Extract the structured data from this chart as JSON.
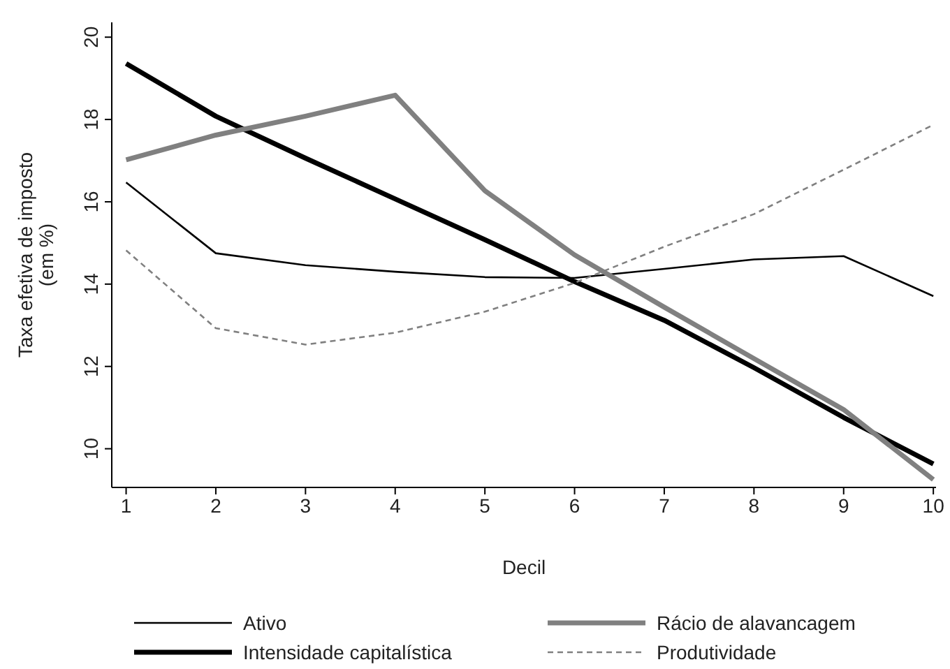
{
  "chart_data": {
    "type": "line",
    "xlabel": "Decil",
    "ylabel": "Taxa efetiva de imposto\n(em %)",
    "x": [
      1,
      2,
      3,
      4,
      5,
      6,
      7,
      8,
      9,
      10
    ],
    "xlim": [
      0.84,
      10.03
    ],
    "xticks": [
      1,
      2,
      3,
      4,
      5,
      6,
      7,
      8,
      9,
      10
    ],
    "ylim": [
      9.06,
      20.36
    ],
    "yticks": [
      10,
      12,
      14,
      16,
      18,
      20
    ],
    "grid": false,
    "legend": "bottom",
    "series": [
      {
        "name": "Ativo",
        "color": "#000000",
        "line_style": "solid",
        "values": [
          16.47,
          14.75,
          14.46,
          14.3,
          14.17,
          14.15,
          14.37,
          14.6,
          14.68,
          13.71
        ]
      },
      {
        "name": "Intensidade capitalística",
        "color": "#000000",
        "line_style": "solid",
        "values": [
          19.36,
          18.08,
          17.06,
          16.07,
          15.08,
          14.06,
          13.12,
          11.97,
          10.76,
          9.63
        ]
      },
      {
        "name": "Rácio de alavancagem",
        "color": "#808080",
        "line_style": "solid",
        "values": [
          17.02,
          17.62,
          18.08,
          18.59,
          16.27,
          14.71,
          13.44,
          12.19,
          10.95,
          9.25
        ]
      },
      {
        "name": "Produtividade",
        "color": "#808080",
        "line_style": "dashed",
        "values": [
          14.82,
          12.93,
          12.53,
          12.82,
          13.33,
          14.03,
          14.91,
          15.7,
          16.78,
          17.87
        ]
      }
    ]
  }
}
